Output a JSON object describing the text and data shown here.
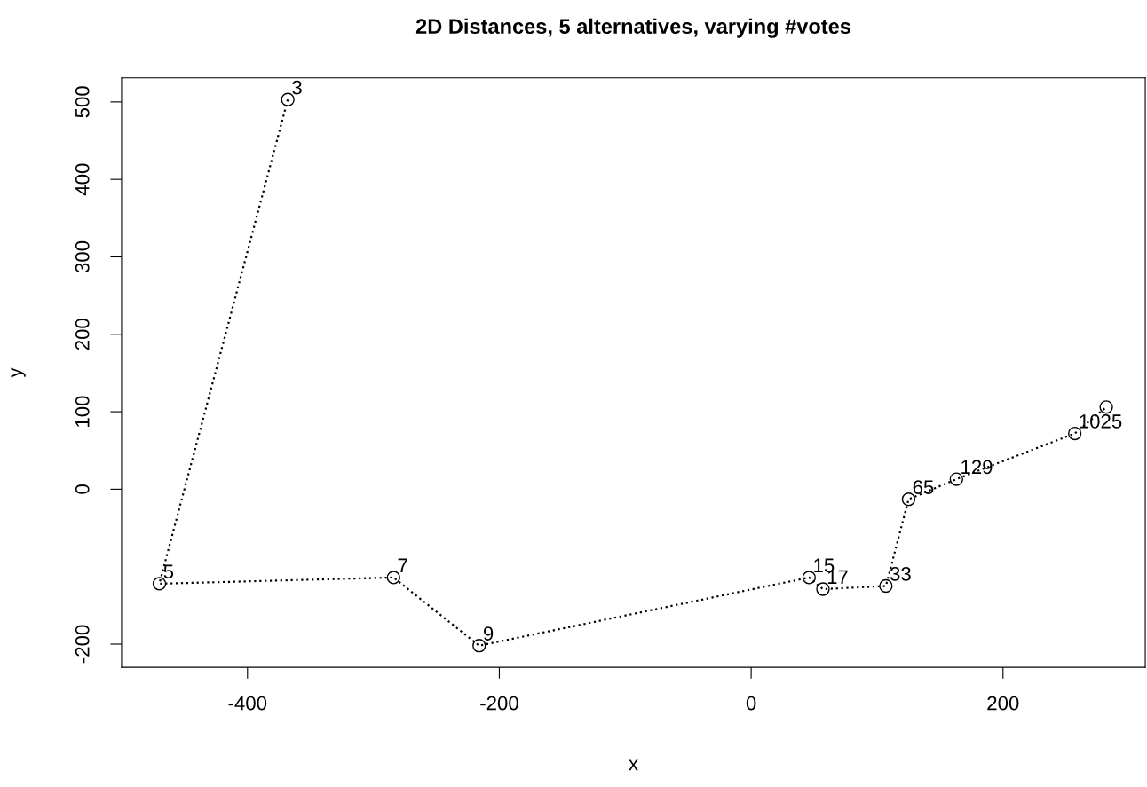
{
  "chart_data": {
    "type": "line",
    "title": "2D Distances, 5 alternatives, varying #votes",
    "xlabel": "x",
    "ylabel": "y",
    "x": [
      -368,
      -470,
      -284,
      -216,
      46,
      57,
      107,
      125,
      163,
      257,
      282
    ],
    "values": [
      503,
      -122,
      -114,
      -202,
      -114,
      -129,
      -125,
      -13,
      13,
      72,
      106
    ],
    "color": "#000000",
    "marker": "circle",
    "line_style": "dotted",
    "grid": false,
    "xlim": [
      -500,
      313
    ],
    "ylim": [
      -230,
      531
    ],
    "xticks": [
      -400,
      -200,
      0,
      200
    ],
    "yticks": [
      -200,
      0,
      100,
      200,
      300,
      400,
      500
    ],
    "annotations": [
      {
        "text": "3",
        "x": -368,
        "y": 503
      },
      {
        "text": "5",
        "x": -470,
        "y": -122
      },
      {
        "text": "7",
        "x": -284,
        "y": -114
      },
      {
        "text": "9",
        "x": -216,
        "y": -202
      },
      {
        "text": "15",
        "x": 46,
        "y": -114
      },
      {
        "text": "17",
        "x": 57,
        "y": -129
      },
      {
        "text": "33",
        "x": 107,
        "y": -125
      },
      {
        "text": "65",
        "x": 125,
        "y": -13
      },
      {
        "text": "129",
        "x": 163,
        "y": 13
      },
      {
        "text": "1025",
        "x": 257,
        "y": 72
      }
    ]
  }
}
